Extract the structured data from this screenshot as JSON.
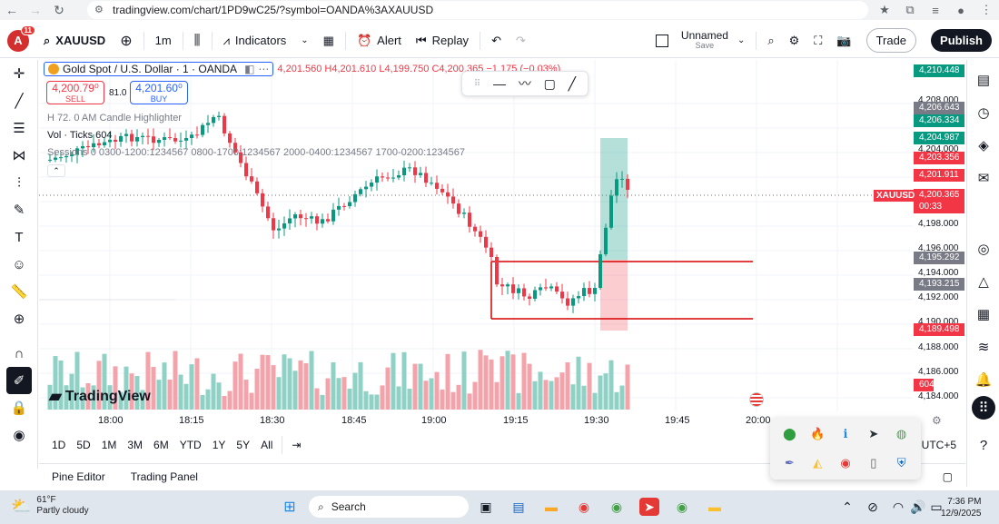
{
  "browser": {
    "url": "tradingview.com/chart/1PD9wC25/?symbol=OANDA%3AXAUUSD"
  },
  "topbar": {
    "notifications": "11",
    "avatar_letter": "A",
    "symbol": "XAUUSD",
    "interval": "1m",
    "indicators_label": "Indicators",
    "alert_label": "Alert",
    "replay_label": "Replay",
    "layout_name": "Unnamed",
    "layout_status": "Save",
    "trade_label": "Trade",
    "publish_label": "Publish"
  },
  "legend": {
    "title": "Gold Spot / U.S. Dollar · 1 · OANDA",
    "ohlc": "4,201.560  H4,201.610  L4,199.750  C4,200.365  −1.175 (−0.03%)",
    "sell_price": "4,200.79⁰",
    "sell_label": "SELL",
    "spread": "81.0",
    "buy_price": "4,201.60⁰",
    "buy_label": "BUY",
    "indicator_1": "H  72. 0  AM Candle Highlighter",
    "indicator_2": "Vol · Ticks  604",
    "indicator_3": "Sessions  0  0300-1200:1234567  0800-1700:1234567  2000-0400:1234567  1700-0200:1234567"
  },
  "price_axis": {
    "ticks": [
      "4,208.000",
      "4,204.000",
      "4,198.000",
      "4,196.000",
      "4,194.000",
      "4,192.000",
      "4,190.000",
      "4,188.000",
      "4,186.000",
      "4,184.000"
    ],
    "labels": [
      {
        "text": "4,210.448",
        "color": "#089981"
      },
      {
        "text": "4,206.643",
        "color": "#787b86"
      },
      {
        "text": "4,206.334",
        "color": "#089981"
      },
      {
        "text": "4,204.987",
        "color": "#089981"
      },
      {
        "text": "4,203.356",
        "color": "#f23645"
      },
      {
        "text": "4,201.911",
        "color": "#f23645"
      },
      {
        "text": "4,200.365",
        "color": "#f23645"
      },
      {
        "text": "00:33",
        "color": "#f23645"
      },
      {
        "text": "4,195.292",
        "color": "#787b86"
      },
      {
        "text": "4,193.215",
        "color": "#787b86"
      },
      {
        "text": "4,189.498",
        "color": "#f23645"
      },
      {
        "text": "604",
        "color": "#f23645"
      }
    ],
    "symbol_tag": "XAUUSD"
  },
  "time_axis": {
    "ticks": [
      "18:00",
      "18:15",
      "18:30",
      "18:45",
      "19:00",
      "19:15",
      "19:30",
      "19:45",
      "20:00"
    ],
    "timezone": "UTC+5"
  },
  "ranges": [
    "1D",
    "5D",
    "1M",
    "3M",
    "6M",
    "YTD",
    "1Y",
    "5Y",
    "All"
  ],
  "bottom_tabs": [
    "Pine Editor",
    "Trading Panel"
  ],
  "logo_text": "TradingView",
  "taskbar": {
    "temperature": "61°F",
    "weather": "Partly cloudy",
    "search_placeholder": "Search",
    "time": "7:36 PM",
    "date": "12/9/2025"
  },
  "colors": {
    "up": "#089981",
    "down": "#f23645",
    "vol_up": "#8fd1c4",
    "vol_down": "#f5a3ab",
    "accent": "#2962ff"
  }
}
